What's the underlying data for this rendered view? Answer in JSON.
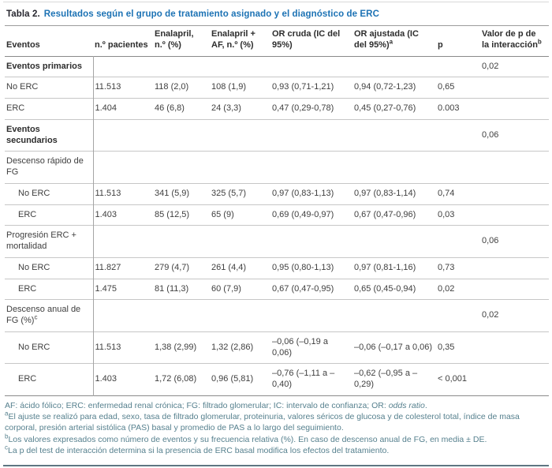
{
  "title": {
    "prefix": "Tabla 2.",
    "text": "Resultados según el grupo de tratamiento asignado y el diagnóstico de ERC"
  },
  "table": {
    "headers": [
      {
        "label": "Eventos",
        "sup": ""
      },
      {
        "label": "n.º pacientes",
        "sup": ""
      },
      {
        "label": "Enalapril, n.º (%)",
        "sup": ""
      },
      {
        "label": "Enalapril + AF, n.º (%)",
        "sup": ""
      },
      {
        "label": "OR cruda (IC del 95%)",
        "sup": ""
      },
      {
        "label": "OR ajustada (IC del 95%)",
        "sup": "a"
      },
      {
        "label": "p",
        "sup": ""
      },
      {
        "label": "Valor de p de la interacción",
        "sup": "b"
      }
    ],
    "rows": [
      {
        "style": "section",
        "indent": false,
        "label": "Eventos primarios",
        "sup": "",
        "cells": [
          "",
          "",
          "",
          "",
          "",
          ""
        ],
        "interaction": "0,02"
      },
      {
        "style": "data",
        "indent": false,
        "label": "No ERC",
        "sup": "",
        "cells": [
          "11.513",
          "118 (2,0)",
          "108 (1,9)",
          "0,93 (0,71-1,21)",
          "0,94 (0,72-1,23)",
          "0,65"
        ],
        "interaction": ""
      },
      {
        "style": "data",
        "indent": false,
        "label": "ERC",
        "sup": "",
        "cells": [
          "1.404",
          "46 (6,8)",
          "24 (3,3)",
          "0,47 (0,29-0,78)",
          "0,45 (0,27-0,76)",
          "0.003"
        ],
        "interaction": ""
      },
      {
        "style": "section",
        "indent": false,
        "label": "Eventos secundarios",
        "sup": "",
        "cells": [
          "",
          "",
          "",
          "",
          "",
          ""
        ],
        "interaction": "0,06"
      },
      {
        "style": "subhead",
        "indent": false,
        "label": "Descenso rápido de FG",
        "sup": "",
        "cells": [
          "",
          "",
          "",
          "",
          "",
          ""
        ],
        "interaction": ""
      },
      {
        "style": "data",
        "indent": true,
        "label": "No ERC",
        "sup": "",
        "cells": [
          "11.513",
          "341 (5,9)",
          "325 (5,7)",
          "0,97 (0,83-1,13)",
          "0,97 (0,83-1,14)",
          "0,74"
        ],
        "interaction": ""
      },
      {
        "style": "data",
        "indent": true,
        "label": "ERC",
        "sup": "",
        "cells": [
          "1.403",
          "85 (12,5)",
          "65 (9)",
          "0,69 (0,49-0,97)",
          "0,67 (0,47-0,96)",
          "0,03"
        ],
        "interaction": ""
      },
      {
        "style": "subhead",
        "indent": false,
        "label": "Progresión ERC + mortalidad",
        "sup": "",
        "cells": [
          "",
          "",
          "",
          "",
          "",
          ""
        ],
        "interaction": "0,06"
      },
      {
        "style": "data",
        "indent": true,
        "label": "No ERC",
        "sup": "",
        "cells": [
          "11.827",
          "279 (4,7)",
          "261 (4,4)",
          "0,95 (0,80-1,13)",
          "0,97 (0,81-1,16)",
          "0,73"
        ],
        "interaction": ""
      },
      {
        "style": "data",
        "indent": true,
        "label": "ERC",
        "sup": "",
        "cells": [
          "1.475",
          "81 (11,3)",
          "60 (7,9)",
          "0,67 (0,47-0,95)",
          "0,65 (0,45-0,94)",
          "0,02"
        ],
        "interaction": ""
      },
      {
        "style": "subhead",
        "indent": false,
        "label": "Descenso anual de FG (%)",
        "sup": "c",
        "cells": [
          "",
          "",
          "",
          "",
          "",
          ""
        ],
        "interaction": "0,02"
      },
      {
        "style": "data",
        "indent": true,
        "label": "No ERC",
        "sup": "",
        "cells": [
          "11.513",
          "1,38 (2,99)",
          "1,32 (2,86)",
          "–0,06 (–0,19 a 0,06)",
          "–0,06 (–0,17 a 0,06)",
          "0,35"
        ],
        "interaction": ""
      },
      {
        "style": "data",
        "indent": true,
        "label": "ERC",
        "sup": "",
        "cells": [
          "1.403",
          "1,72 (6,08)",
          "0,96 (5,81)",
          "–0,76 (–1,11 a –0,40)",
          "–0,62 (–0,95 a –0,29)",
          "< 0,001"
        ],
        "interaction": ""
      }
    ]
  },
  "footnotes": [
    {
      "sup": "",
      "text": "AF: ácido fólico; ERC: enfermedad renal crónica; FG: filtrado glomerular; IC: intervalo de confianza; OR: ",
      "italic": "odds ratio",
      "tail": "."
    },
    {
      "sup": "a",
      "text": "El ajuste se realizó para edad, sexo, tasa de filtrado glomerular, proteinuria, valores séricos de glucosa y de colesterol total, índice de masa corporal, presión arterial sistólica (PAS) basal y promedio de PAS a lo largo del seguimiento.",
      "italic": "",
      "tail": ""
    },
    {
      "sup": "b",
      "text": "Los valores expresados como número de eventos y su frecuencia relativa (%). En caso de descenso anual de FG, en media ± DE.",
      "italic": "",
      "tail": ""
    },
    {
      "sup": "c",
      "text": "La p del test de interacción determina si la presencia de ERC basal modifica los efectos del tratamiento.",
      "italic": "",
      "tail": ""
    }
  ],
  "colors": {
    "title_blue": "#1c72b4",
    "footnote_teal": "#56808e",
    "body_text": "#404040",
    "rule_light": "#c7c7c7",
    "rule_dark": "#8a8a8a",
    "bottom_rule": "#5f7682"
  }
}
